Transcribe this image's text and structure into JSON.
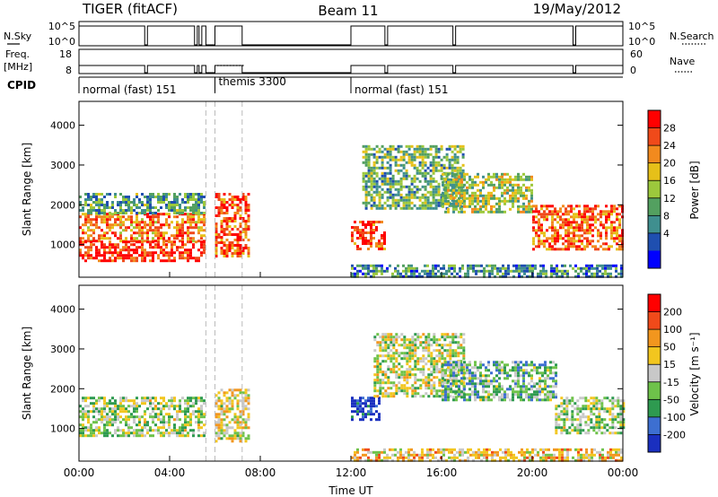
{
  "header": {
    "radar": "TIGER (fitACF)",
    "beam": "Beam 11",
    "date": "19/May/2012"
  },
  "top_panels": {
    "nsky_label": "N.Sky",
    "nsky_ticks": [
      "10^5",
      "10^0"
    ],
    "nsearch_label": "N.Search",
    "nsearch_ticks": [
      "10^5",
      "10^0"
    ],
    "freq_label": "Freq.",
    "freq_unit": "[MHz]",
    "freq_ticks": [
      "18",
      "8"
    ],
    "nave_label": "Nave",
    "nave_ticks": [
      "60",
      "0"
    ],
    "cpid_label": "CPID",
    "cpid_segments": [
      {
        "label": "normal (fast) 151",
        "start": 0,
        "end": 6
      },
      {
        "label": "themis 3300",
        "start": 6,
        "end": 12
      },
      {
        "label": "normal (fast) 151",
        "start": 12,
        "end": 24
      }
    ]
  },
  "chart_data": [
    {
      "type": "heatmap",
      "panel": "power",
      "ylabel": "Slant Range [km]",
      "yticks": [
        1000,
        2000,
        3000,
        4000
      ],
      "ylim": [
        180,
        4600
      ],
      "xlim": [
        0,
        24
      ],
      "colorbar_label": "Power [dB]",
      "colorbar_ticks": [
        "4",
        "8",
        "12",
        "16",
        "20",
        "24",
        "28"
      ],
      "colors": [
        "#0000ff",
        "#1f4fb0",
        "#3f8f8f",
        "#53a060",
        "#9cc83c",
        "#e6c019",
        "#f28a1e",
        "#f04a1a",
        "#ff0000"
      ],
      "regions": [
        {
          "t": [
            0,
            5.5
          ],
          "r": [
            1100,
            1800
          ],
          "level": 0.75
        },
        {
          "t": [
            0,
            5.5
          ],
          "r": [
            600,
            1100
          ],
          "level": 0.9
        },
        {
          "t": [
            0,
            5.5
          ],
          "r": [
            1800,
            2300
          ],
          "level": 0.35
        },
        {
          "t": [
            6,
            7.5
          ],
          "r": [
            700,
            2300
          ],
          "level": 0.8
        },
        {
          "t": [
            12,
            13.5
          ],
          "r": [
            900,
            1600
          ],
          "level": 0.85
        },
        {
          "t": [
            12.5,
            17
          ],
          "r": [
            1900,
            3500
          ],
          "level": 0.4
        },
        {
          "t": [
            16,
            20
          ],
          "r": [
            1800,
            2800
          ],
          "level": 0.5
        },
        {
          "t": [
            20,
            24
          ],
          "r": [
            900,
            2000
          ],
          "level": 0.8
        },
        {
          "t": [
            12,
            24
          ],
          "r": [
            180,
            500
          ],
          "level": 0.3
        }
      ]
    },
    {
      "type": "heatmap",
      "panel": "velocity",
      "ylabel": "Slant Range [km]",
      "yticks": [
        1000,
        2000,
        3000,
        4000
      ],
      "ylim": [
        180,
        4600
      ],
      "xlim": [
        0,
        24
      ],
      "colorbar_label": "Velocity [m s⁻¹]",
      "colorbar_ticks": [
        "200",
        "100",
        "50",
        "15",
        "-15",
        "-50",
        "-100",
        "-200"
      ],
      "colors": [
        "#1a2fbf",
        "#3d6fd1",
        "#2e9a50",
        "#6ec24a",
        "#c8c8c8",
        "#f2c61f",
        "#f2961e",
        "#f04a1a",
        "#ff0000"
      ],
      "regions": [
        {
          "t": [
            0,
            5.5
          ],
          "r": [
            800,
            1800
          ],
          "level": 0.45
        },
        {
          "t": [
            6,
            7.5
          ],
          "r": [
            700,
            2000
          ],
          "level": 0.55
        },
        {
          "t": [
            12,
            13.2
          ],
          "r": [
            1200,
            1800
          ],
          "level": 0.05
        },
        {
          "t": [
            13,
            17
          ],
          "r": [
            1800,
            3400
          ],
          "level": 0.5
        },
        {
          "t": [
            16,
            21
          ],
          "r": [
            1700,
            2700
          ],
          "level": 0.35
        },
        {
          "t": [
            21,
            24
          ],
          "r": [
            900,
            1800
          ],
          "level": 0.45
        },
        {
          "t": [
            12,
            24
          ],
          "r": [
            180,
            500
          ],
          "level": 0.6
        }
      ]
    }
  ],
  "xaxis": {
    "ticks": [
      "00:00",
      "04:00",
      "08:00",
      "12:00",
      "16:00",
      "20:00",
      "00:00"
    ],
    "label": "Time UT"
  }
}
